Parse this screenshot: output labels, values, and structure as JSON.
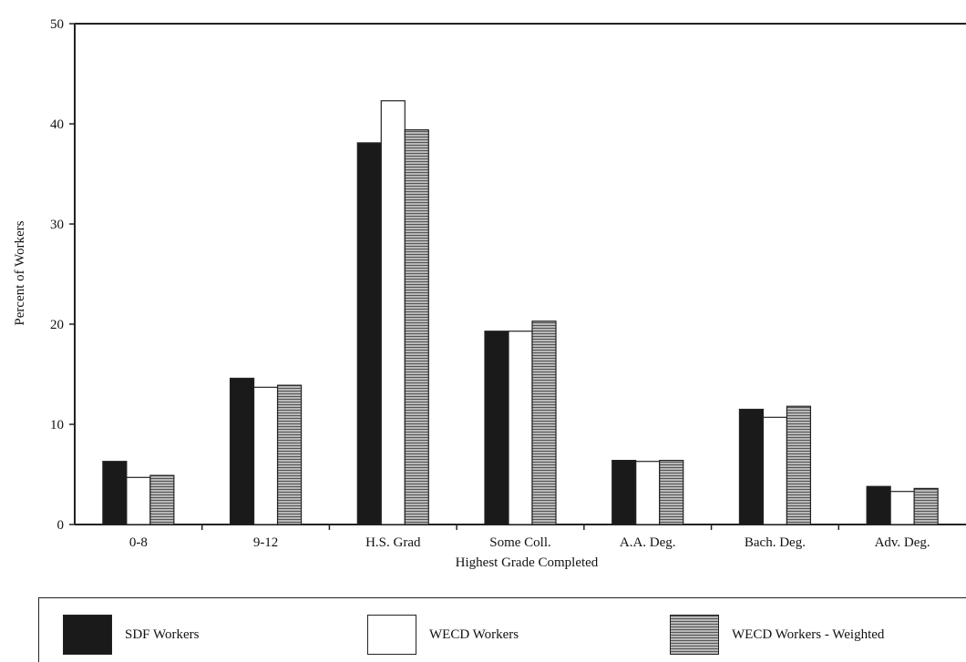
{
  "chart_data": {
    "type": "bar",
    "xlabel": "Highest Grade Completed",
    "ylabel": "Percent of Workers",
    "ylim": [
      0,
      50
    ],
    "yticks": [
      0,
      10,
      20,
      30,
      40,
      50
    ],
    "categories": [
      "0-8",
      "9-12",
      "H.S. Grad",
      "Some Coll.",
      "A.A. Deg.",
      "Bach. Deg.",
      "Adv. Deg."
    ],
    "series": [
      {
        "name": "SDF Workers",
        "values": [
          6.3,
          14.6,
          38.1,
          19.3,
          6.4,
          11.5,
          3.8
        ],
        "fill": "#1a1a1a"
      },
      {
        "name": "WECD Workers",
        "values": [
          4.7,
          13.7,
          42.3,
          19.3,
          6.3,
          10.7,
          3.3
        ],
        "fill": "#ffffff"
      },
      {
        "name": "WECD Workers - Weighted",
        "values": [
          4.9,
          13.9,
          39.4,
          20.3,
          6.4,
          11.8,
          3.6
        ],
        "fill": "#9a9a9a"
      }
    ],
    "grid": false,
    "legend_position": "bottom"
  }
}
